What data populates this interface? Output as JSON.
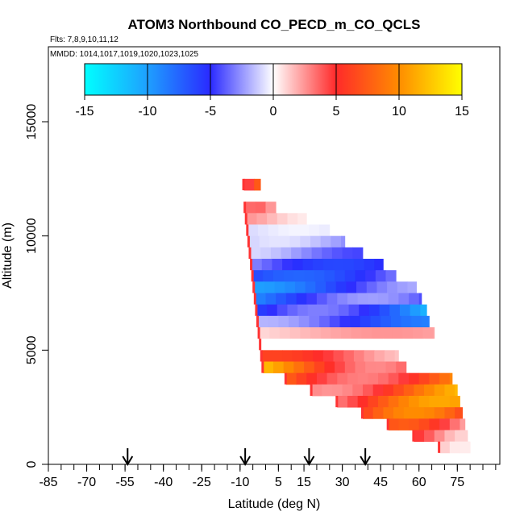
{
  "chart_data": {
    "type": "heatmap",
    "title": "ATOM3 Northbound CO_PECD_m_CO_QCLS",
    "subtitle_flights": "Flts: 7,8,9,10,11,12",
    "subtitle_dates": "MMDD: 1014,1017,1019,1020,1023,1025",
    "xlabel": "Latitude (deg N)",
    "ylabel": "Altitude (m)",
    "xlim": [
      -90,
      90
    ],
    "ylim": [
      0,
      18000
    ],
    "x_ticks": [
      -85,
      -70,
      -55,
      -40,
      -25,
      -10,
      5,
      15,
      30,
      45,
      60,
      75
    ],
    "x_tick_labels": [
      "-85",
      "-70",
      "-55",
      "-40",
      "-25",
      "-10",
      "5",
      "15",
      "30",
      "45",
      "60",
      "75"
    ],
    "y_ticks": [
      0,
      5000,
      10000,
      15000
    ],
    "y_tick_labels": [
      "0",
      "5000",
      "10000",
      "15000"
    ],
    "colorbar": {
      "min": -15,
      "max": 15,
      "ticks": [
        -15,
        -10,
        -5,
        0,
        5,
        10,
        15
      ],
      "tick_labels": [
        "-15",
        "-10",
        "-5",
        "0",
        "5",
        "10",
        "15"
      ],
      "colors": [
        "#00ffff",
        "#1ea0ff",
        "#2a2aff",
        "#ffffff",
        "#ff2a2a",
        "#ff8c00",
        "#ffff00"
      ]
    },
    "arrows_latitude": [
      -54,
      -8,
      17,
      39
    ],
    "altitude_bands": [
      {
        "alt": 12250,
        "lat_start": -8.5,
        "lat_end": -2,
        "value": 6
      },
      {
        "alt": 11250,
        "lat_start": -8,
        "lat_end": 4,
        "value": 3
      },
      {
        "alt": 10750,
        "lat_start": -7.5,
        "lat_end": 16,
        "value": 2
      },
      {
        "alt": 10250,
        "lat_start": -7,
        "lat_end": 25,
        "value": -1
      },
      {
        "alt": 9750,
        "lat_start": -6.5,
        "lat_end": 31,
        "value": -2.5
      },
      {
        "alt": 9250,
        "lat_start": -6,
        "lat_end": 38,
        "value": -3.5
      },
      {
        "alt": 8750,
        "lat_start": -5.5,
        "lat_end": 46,
        "value": -5
      },
      {
        "alt": 8250,
        "lat_start": -5,
        "lat_end": 51,
        "value": -6
      },
      {
        "alt": 7750,
        "lat_start": -4.5,
        "lat_end": 59,
        "value": -8
      },
      {
        "alt": 7250,
        "lat_start": -4,
        "lat_end": 61,
        "value": -9
      },
      {
        "alt": 6750,
        "lat_start": -3.5,
        "lat_end": 63,
        "value": -12
      },
      {
        "alt": 6250,
        "lat_start": -3,
        "lat_end": 64,
        "value": -7
      },
      {
        "alt": 5750,
        "lat_start": -2.5,
        "lat_end": 66,
        "value": 2
      },
      {
        "alt": 5250,
        "lat_start": -2,
        "lat_end": 67,
        "value": 0
      },
      {
        "alt": 4750,
        "lat_start": -1.5,
        "lat_end": 52,
        "value": 5
      },
      {
        "alt": 4250,
        "lat_start": -1,
        "lat_end": 55,
        "value": 11
      },
      {
        "alt": 3750,
        "lat_start": 8,
        "lat_end": 73,
        "value": 12
      },
      {
        "alt": 3250,
        "lat_start": 18,
        "lat_end": 75,
        "value": 10
      },
      {
        "alt": 2750,
        "lat_start": 28,
        "lat_end": 76,
        "value": 9
      },
      {
        "alt": 2250,
        "lat_start": 38,
        "lat_end": 77,
        "value": 8
      },
      {
        "alt": 1750,
        "lat_start": 48,
        "lat_end": 78,
        "value": 6
      },
      {
        "alt": 1250,
        "lat_start": 58,
        "lat_end": 79,
        "value": 4
      },
      {
        "alt": 750,
        "lat_start": 68,
        "lat_end": 80,
        "value": 1.5
      }
    ]
  }
}
